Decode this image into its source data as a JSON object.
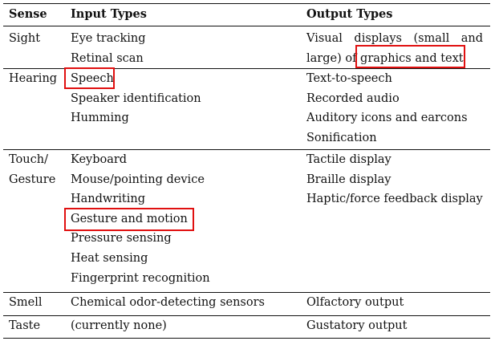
{
  "header": {
    "sense": "Sense",
    "input": "Input Types",
    "output": "Output Types"
  },
  "rows": [
    {
      "sense": [
        "Sight"
      ],
      "inputs": [
        "Eye tracking",
        "Retinal scan"
      ],
      "outputs": [
        "Visual displays (small and",
        "large) of graphics and text"
      ]
    },
    {
      "sense": [
        "Hearing"
      ],
      "inputs": [
        "Speech",
        "Speaker identification",
        "Humming"
      ],
      "outputs": [
        "Text-to-speech",
        "Recorded audio",
        "Auditory icons and earcons",
        "Sonification"
      ]
    },
    {
      "sense": [
        "Touch/",
        "Gesture"
      ],
      "inputs": [
        "Keyboard",
        "Mouse/pointing device",
        "Handwriting",
        "Gesture and motion",
        "Pressure sensing",
        "Heat sensing",
        "Fingerprint recognition"
      ],
      "outputs": [
        "Tactile display",
        "Braille display",
        "Haptic/force feedback display"
      ]
    },
    {
      "sense": [
        "Smell"
      ],
      "inputs": [
        "Chemical odor-detecting sensors"
      ],
      "outputs": [
        "Olfactory output"
      ]
    },
    {
      "sense": [
        "Taste"
      ],
      "inputs": [
        "(currently none)"
      ],
      "outputs": [
        "Gustatory output"
      ]
    }
  ],
  "highlight_color": "#e01010"
}
